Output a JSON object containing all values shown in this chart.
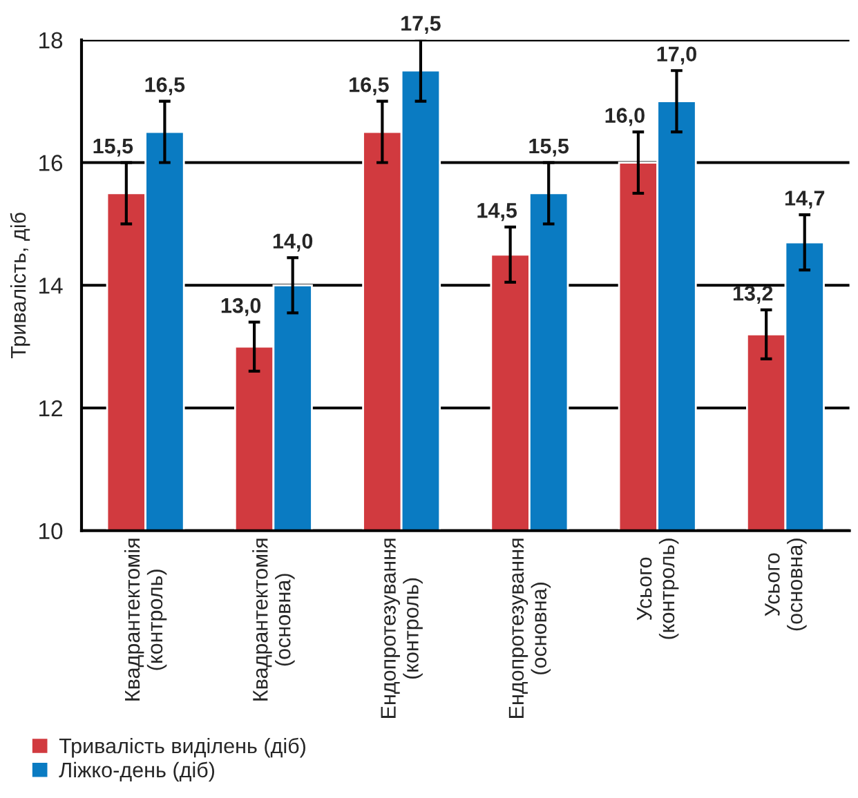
{
  "chart_data": {
    "type": "bar",
    "ylabel": "Тривалість, діб",
    "categories": [
      "Квадрантектомія\n(контроль)",
      "Квадрантектомія\n(основна)",
      "Ендопротезування\n(контроль)",
      "Ендопротезування\n(основна)",
      "Усього\n(контроль)",
      "Усього\n(основна)"
    ],
    "series": [
      {
        "name": "Тривалість виділень (діб)",
        "color": "#d13a3f",
        "values": [
          15.5,
          13.0,
          16.5,
          14.5,
          16.0,
          13.2
        ],
        "value_labels": [
          "15,5",
          "13,0",
          "16,5",
          "14,5",
          "16,0",
          "13,2"
        ],
        "errors": [
          0.5,
          0.4,
          0.5,
          0.45,
          0.5,
          0.4
        ]
      },
      {
        "name": "Ліжко-день (діб)",
        "color": "#0a7bc2",
        "values": [
          16.5,
          14.0,
          17.5,
          15.5,
          17.0,
          14.7
        ],
        "value_labels": [
          "16,5",
          "14,0",
          "17,5",
          "15,5",
          "17,0",
          "14,7"
        ],
        "errors": [
          0.5,
          0.45,
          0.5,
          0.5,
          0.5,
          0.45
        ]
      }
    ],
    "ylim": [
      10,
      18
    ],
    "yticks": [
      10,
      12,
      14,
      16,
      18
    ],
    "grid": "y",
    "legend": "bottom left"
  }
}
